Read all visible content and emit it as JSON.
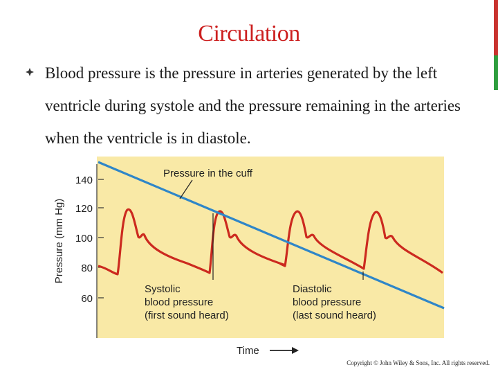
{
  "title": "Circulation",
  "bullet_text": "Blood pressure is the pressure in arteries generated by the left ventricle during systole and the pressure remaining in the arteries when the ventricle is in diastole.",
  "diagram": {
    "y_axis_label": "Pressure (mm Hg)",
    "y_ticks": [
      "140",
      "120",
      "100",
      "80",
      "60"
    ],
    "x_axis_label": "Time",
    "cuff_label": "Pressure in the cuff",
    "systolic_label": [
      "Systolic",
      "blood pressure",
      "(first sound heard)"
    ],
    "diastolic_label": [
      "Diastolic",
      "blood pressure",
      "(last sound heard)"
    ],
    "colors": {
      "background": "#f9e9a6",
      "cuff_line": "#2f86c8",
      "pressure_wave": "#cc2a1f"
    }
  },
  "copyright": "Copyright © John Wiley & Sons, Inc. All rights reserved."
}
